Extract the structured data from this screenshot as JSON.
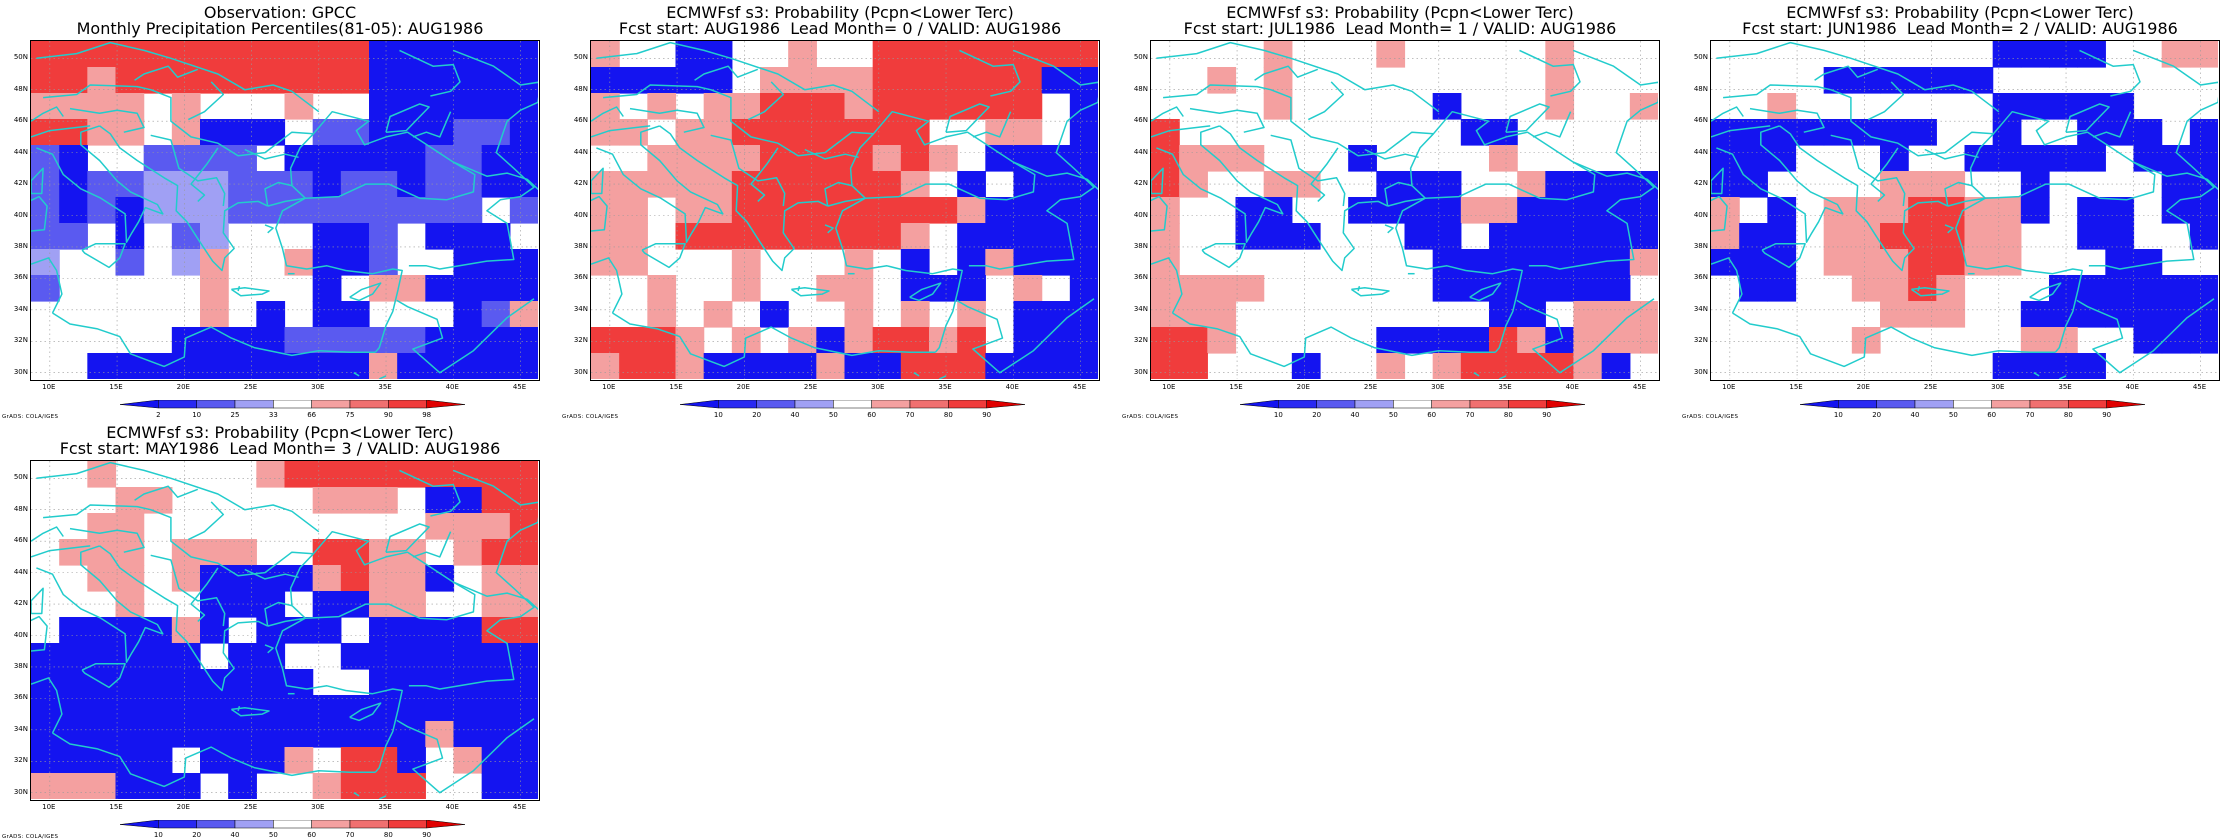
{
  "panels": [
    {
      "title1": "Observation: GPCC",
      "title2": "Monthly Precipitation Percentiles(81-05): AUG1986",
      "colorbar": "obs",
      "grid": [
        "RRRRRRRRRRRRBBBBBB",
        "RRrRRRRRRRRRBBBBBB",
        "rrrr.r...r..BBBBBB",
        "RRrr.rBBB.bbBBBbbB",
        "bB..bbbb.BBBBBbbBB",
        "bBbbLLLbbbBbbBbbBB",
        "bBbBLLLbbbbbbbbb.b",
        "bb.B.bL...BBb.BBB.",
        "L..b.Lr..rBBb..BBB",
        "b.....r...B.rrBBBB",
        "......r.B.BB...Bbr",
        ".....BBBBbbbbbBBBB",
        "..BBBBBBBBBBrBBBBB"
      ]
    },
    {
      "title1": "ECMWFsf s3: Probability (Pcpn<Lower Terc)",
      "title2": "Fcst start: AUG1986  Lead Month= 0 / VALID: AUG1986",
      "colorbar": "prob",
      "grid": [
        "r..BB..r..RRRRRRRR",
        "BBBBB.rrrrRRRRRRBB",
        "r.r.rrRRRrRRRRRR.B",
        "rr.rrRRRRRRR..rr.B",
        "..rrrrRRRRrRr.BBBB",
        "rrrrrRRRRRRr.B.BBB",
        "rr.rrRRRRRRRRrBBBB",
        "rr.RRRRRRRRr.BBBBB",
        "rr...r...r.B.BrBBB",
        "..r..r..rr.BBB.r.B",
        "..r.r.B..r.r.r.BBB",
        "RRRr.r.rBrRRrR.BBB",
        "rRRrBBBBrBBRRRBBBB"
      ]
    },
    {
      "title1": "ECMWFsf s3: Probability (Pcpn<Lower Terc)",
      "title2": "Fcst start: JUL1986  Lead Month= 1 / VALID: AUG1986",
      "colorbar": "prob",
      "grid": [
        "....r...r.....r...",
        "..r.r.........r...",
        "....r.....B...r..r",
        "R..........BB.....",
        "Rrrr...B....r.....",
        "Rr..rr..BBB..rBBBB",
        "r..BB..BBBBrrBBBBB",
        "r..BBB...BB.BBBBBB",
        "r.........BBBBBBBr",
        "rrrr......BBBBBBB.",
        "rrr.........BB.rrr",
        "RRr.....BBBBRrBrrr",
        "RR...B..r.rRRRRrB."
      ]
    },
    {
      "title1": "ECMWFsf s3: Probability (Pcpn<Lower Terc)",
      "title2": "Fcst start: JUN1986  Lead Month= 2 / VALID: AUG1986",
      "colorbar": "prob",
      "grid": [
        "..........BBBB..rr",
        "....BBBBBB........",
        "..r.......BBBBB...",
        "BBBBBBBB..B..BBB.B",
        "BBB...B..BBBBB.BBB",
        "BB....rrr..B....BB",
        "r.B.rrrRRrrB.BB.BB",
        "rBB.rrRRRrr..BB..B",
        "BBB.rrrRRrr...BB..",
        ".BB..rrRr...BBBBBB",
        "......rrr..BBBBBBB",
        ".....r.....rr..BBB",
        "..........BBBB...."
      ]
    },
    {
      "title1": "ECMWFsf s3: Probability (Pcpn<Lower Terc)",
      "title2": "Fcst start: MAY1986  Lead Month= 3 / VALID: AUG1986",
      "colorbar": "prob",
      "grid": [
        "..r.....rRRRRRRRRR",
        "...rr.....rrr.BBRR",
        "..rr..........rrrR",
        ".rrr.rrr..RRrr.rRR",
        "..rr.rBBBBrRrrB.rr",
        "...r..BBB.BBrr..rr",
        ".BBBBrB.BBB.BBBBRR",
        "BBBBBB.BB..BBBBBBB",
        "BBBBBBBBBB..BBBBBB",
        "BBBBBBBBBBBBBBBBBB",
        "BBBBBBBBBBBBBBrBBB",
        "BBBBB.BBBr.RRB.rBB",
        "rrrBBB.B..rRRR..BB"
      ]
    }
  ],
  "axes": {
    "lat_labels": [
      "50N",
      "48N",
      "46N",
      "44N",
      "42N",
      "40N",
      "38N",
      "36N",
      "34N",
      "32N",
      "30N"
    ],
    "lon_labels": [
      "10E",
      "15E",
      "20E",
      "25E",
      "30E",
      "35E",
      "40E",
      "45E"
    ]
  },
  "colorbars": {
    "obs": {
      "labels": [
        "2",
        "10",
        "25",
        "33",
        "66",
        "75",
        "90",
        "98"
      ]
    },
    "prob": {
      "labels": [
        "10",
        "20",
        "40",
        "50",
        "60",
        "70",
        "80",
        "90"
      ]
    }
  },
  "credit": "GrADS: COLA/IGES",
  "colors": {
    "strong_blue": "#1414f0",
    "light_blue": "#5a5af0",
    "lavender": "#a0a0f4",
    "light_red": "#f4a0a0",
    "red": "#f03c3c",
    "strong_red": "#e00000",
    "coast": "#22cccc"
  }
}
